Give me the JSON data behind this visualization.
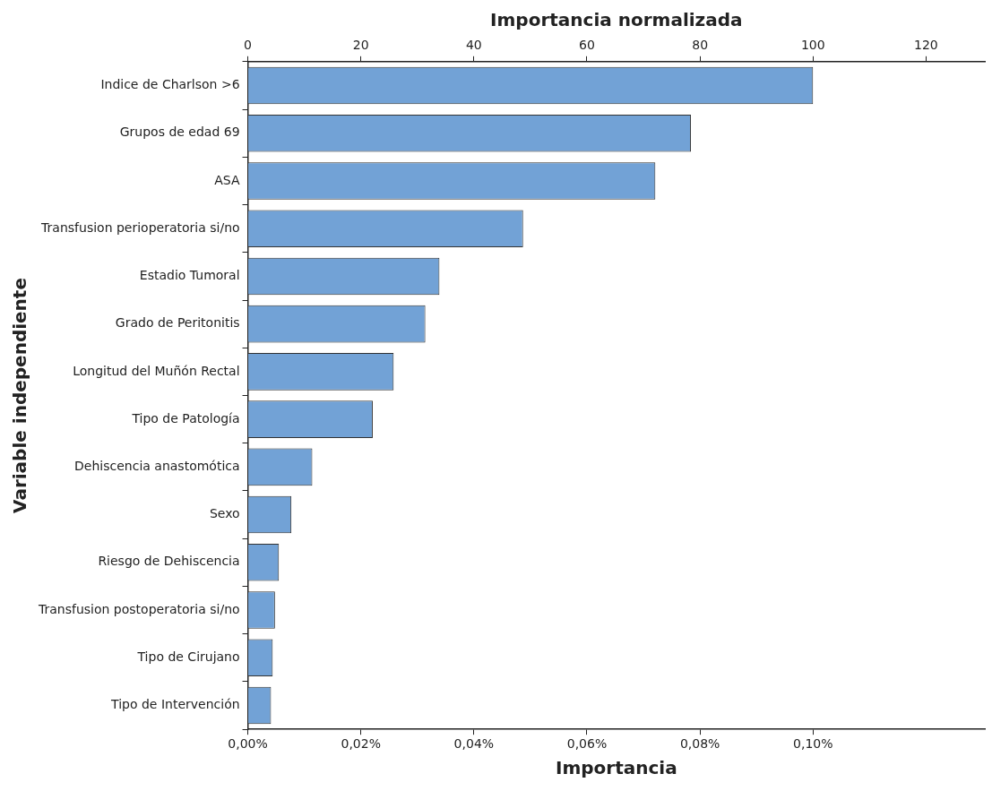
{
  "chart_data": {
    "type": "bar",
    "orientation": "horizontal",
    "xlabel": "Importancia",
    "x2label": "Importancia normalizada",
    "ylabel": "Variable independiente",
    "categories": [
      "Indice de Charlson >6",
      "Grupos de edad 69",
      "ASA",
      "Transfusion perioperatoria si/no",
      "Estadio Tumoral",
      "Grado de Peritonitis",
      "Longitud del Muñón Rectal",
      "Tipo de Patología",
      "Dehiscencia anastomótica",
      "Sexo",
      "Riesgo de Dehiscencia",
      "Transfusion postoperatoria si/no",
      "Tipo de Cirujano",
      "Tipo de Intervención"
    ],
    "values": [
      0.1,
      0.0784,
      0.0721,
      0.0487,
      0.0339,
      0.0314,
      0.0258,
      0.0221,
      0.0114,
      0.0077,
      0.0055,
      0.0048,
      0.0044,
      0.0041
    ],
    "color": "#72a2d6",
    "xlim": [
      0,
      0.1304
    ],
    "xticks": [
      {
        "value": 0,
        "label": "0,00%"
      },
      {
        "value": 0.02,
        "label": "0,02%"
      },
      {
        "value": 0.04,
        "label": "0,04%"
      },
      {
        "value": 0.06,
        "label": "0,06%"
      },
      {
        "value": 0.08,
        "label": "0,08%"
      },
      {
        "value": 0.1,
        "label": "0,10%"
      }
    ],
    "x2lim": [
      0,
      130.4
    ],
    "x2ticks": [
      0,
      20,
      40,
      60,
      80,
      100,
      120
    ]
  }
}
